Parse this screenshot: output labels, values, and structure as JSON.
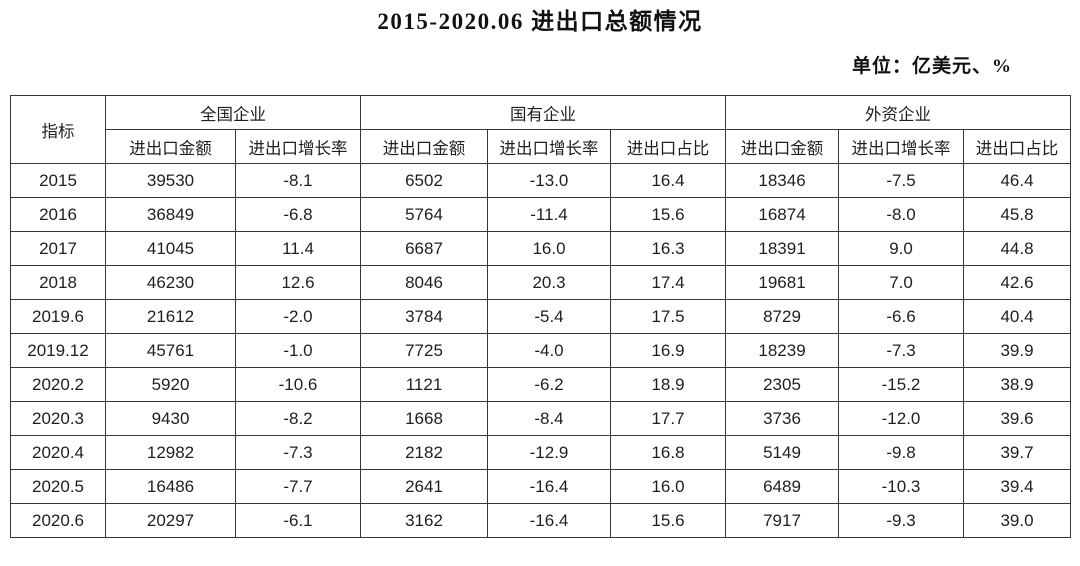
{
  "page": {
    "title": "2015-2020.06 进出口总额情况",
    "unit_label": "单位：亿美元、%"
  },
  "chart_data": {
    "type": "table",
    "title": "2015-2020.06 进出口总额情况",
    "unit": "亿美元、%",
    "indicator_header": "指标",
    "column_groups": [
      {
        "label": "全国企业",
        "subcolumns": [
          "进出口金额",
          "进出口增长率"
        ]
      },
      {
        "label": "国有企业",
        "subcolumns": [
          "进出口金额",
          "进出口增长率",
          "进出口占比"
        ]
      },
      {
        "label": "外资企业",
        "subcolumns": [
          "进出口金额",
          "进出口增长率",
          "进出口占比"
        ]
      }
    ],
    "rows": [
      {
        "indicator": "2015",
        "values": [
          "39530",
          "-8.1",
          "6502",
          "-13.0",
          "16.4",
          "18346",
          "-7.5",
          "46.4"
        ]
      },
      {
        "indicator": "2016",
        "values": [
          "36849",
          "-6.8",
          "5764",
          "-11.4",
          "15.6",
          "16874",
          "-8.0",
          "45.8"
        ]
      },
      {
        "indicator": "2017",
        "values": [
          "41045",
          "11.4",
          "6687",
          "16.0",
          "16.3",
          "18391",
          "9.0",
          "44.8"
        ]
      },
      {
        "indicator": "2018",
        "values": [
          "46230",
          "12.6",
          "8046",
          "20.3",
          "17.4",
          "19681",
          "7.0",
          "42.6"
        ]
      },
      {
        "indicator": "2019.6",
        "values": [
          "21612",
          "-2.0",
          "3784",
          "-5.4",
          "17.5",
          "8729",
          "-6.6",
          "40.4"
        ]
      },
      {
        "indicator": "2019.12",
        "values": [
          "45761",
          "-1.0",
          "7725",
          "-4.0",
          "16.9",
          "18239",
          "-7.3",
          "39.9"
        ]
      },
      {
        "indicator": "2020.2",
        "values": [
          "5920",
          "-10.6",
          "1121",
          "-6.2",
          "18.9",
          "2305",
          "-15.2",
          "38.9"
        ]
      },
      {
        "indicator": "2020.3",
        "values": [
          "9430",
          "-8.2",
          "1668",
          "-8.4",
          "17.7",
          "3736",
          "-12.0",
          "39.6"
        ]
      },
      {
        "indicator": "2020.4",
        "values": [
          "12982",
          "-7.3",
          "2182",
          "-12.9",
          "16.8",
          "5149",
          "-9.8",
          "39.7"
        ]
      },
      {
        "indicator": "2020.5",
        "values": [
          "16486",
          "-7.7",
          "2641",
          "-16.4",
          "16.0",
          "6489",
          "-10.3",
          "39.4"
        ]
      },
      {
        "indicator": "2020.6",
        "values": [
          "20297",
          "-6.1",
          "3162",
          "-16.4",
          "15.6",
          "7917",
          "-9.3",
          "39.0"
        ]
      }
    ]
  },
  "colors": {
    "border": "#363636",
    "text": "#1f1f1f",
    "background": "#ffffff"
  }
}
